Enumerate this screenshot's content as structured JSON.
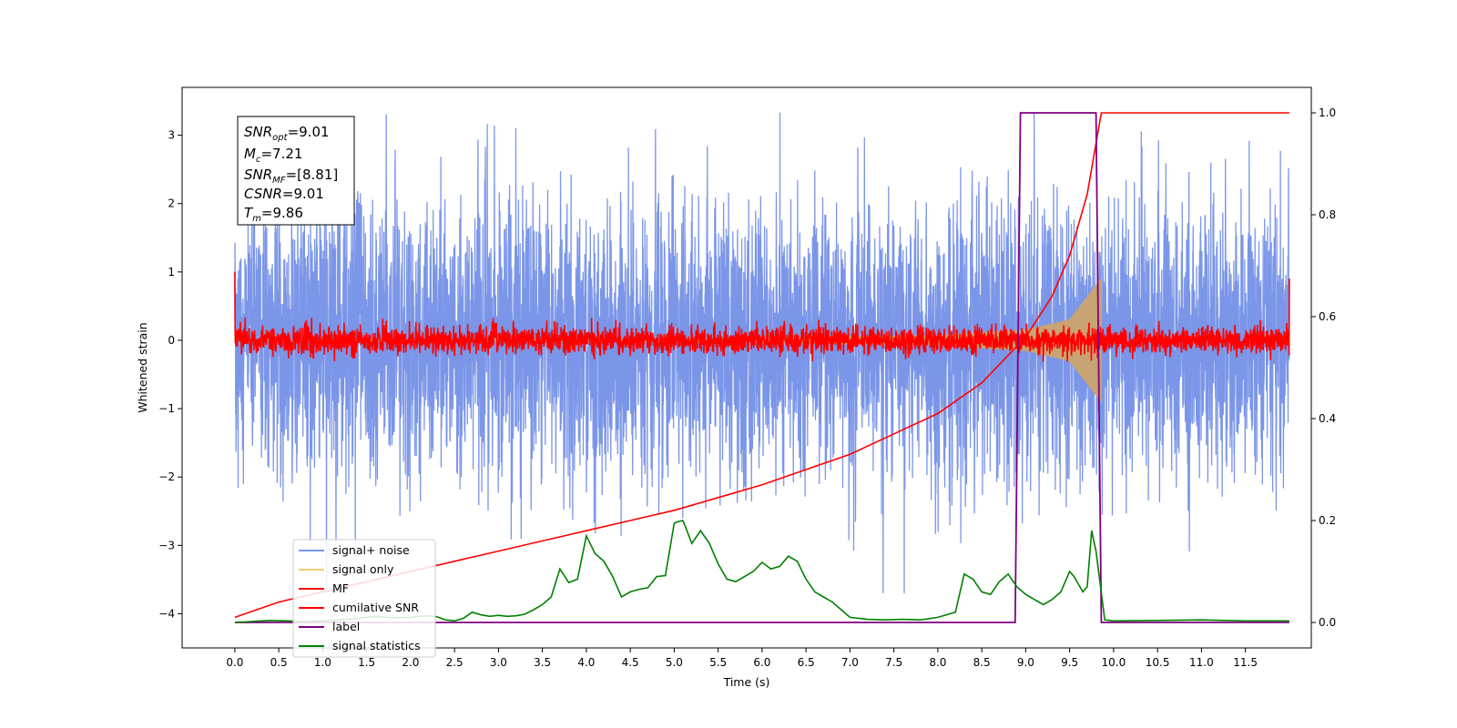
{
  "chart_data": {
    "type": "line",
    "xlabel": "Time (s)",
    "ylabel": "Whitened strain",
    "xlim": [
      -0.6,
      12.25
    ],
    "ylim_left": [
      -4.5,
      3.7
    ],
    "ylim_right": [
      -0.05,
      1.05
    ],
    "x_ticks": [
      "0.0",
      "0.5",
      "1.0",
      "1.5",
      "2.0",
      "2.5",
      "3.0",
      "3.5",
      "4.0",
      "4.5",
      "5.0",
      "5.5",
      "6.0",
      "6.5",
      "7.0",
      "7.5",
      "8.0",
      "8.5",
      "9.0",
      "9.5",
      "10.0",
      "10.5",
      "11.0",
      "11.5"
    ],
    "y_ticks_left": [
      "−4",
      "−3",
      "−2",
      "−1",
      "0",
      "1",
      "2",
      "3"
    ],
    "y_ticks_right": [
      "0.0",
      "0.2",
      "0.4",
      "0.6",
      "0.8",
      "1.0"
    ],
    "grid": false,
    "legend_position": "lower-left",
    "info_box": {
      "snr_opt": {
        "main": "SNR",
        "sub": "opt",
        "value": "=9.01"
      },
      "mc": {
        "main": "M",
        "sub": "c",
        "value": "=7.21"
      },
      "snr_mf": {
        "main": "SNR",
        "sub": "MF",
        "value": "=[8.81]"
      },
      "csnr": {
        "main": "CSNR",
        "sub": "",
        "value": "=9.01"
      },
      "tm": {
        "main": "T",
        "sub": "m",
        "value": "=9.86"
      }
    },
    "series": [
      {
        "name": "signal+ noise",
        "axis": "left",
        "color": "#7b96e8",
        "x_range": [
          0.0,
          12.0
        ],
        "envelope": {
          "mean": 0.0,
          "sigma": 1.0,
          "peak_max": 3.35,
          "peak_min": -3.7
        }
      },
      {
        "name": "signal only",
        "axis": "left",
        "color": "#f5c97a",
        "x_range": [
          0.0,
          9.86
        ],
        "chirp_amplitude": [
          [
            0.0,
            0.005
          ],
          [
            5.0,
            0.02
          ],
          [
            8.0,
            0.07
          ],
          [
            9.0,
            0.15
          ],
          [
            9.5,
            0.3
          ],
          [
            9.86,
            0.9
          ]
        ]
      },
      {
        "name": "MF",
        "axis": "left",
        "color": "#ff0000",
        "x_range": [
          0.0,
          12.0
        ],
        "noise": {
          "mean": 0.0,
          "sigma": 0.1,
          "peak": 0.33
        },
        "edges": [
          [
            0.0,
            1.0
          ],
          [
            12.0,
            0.9
          ]
        ]
      },
      {
        "name": "cumilative SNR",
        "axis": "right",
        "color": "#ff0000",
        "x": [
          0.0,
          0.5,
          1.0,
          1.5,
          2.0,
          2.5,
          3.0,
          3.5,
          4.0,
          4.5,
          5.0,
          5.5,
          6.0,
          6.5,
          7.0,
          7.5,
          8.0,
          8.5,
          9.0,
          9.3,
          9.5,
          9.7,
          9.86,
          10.0,
          11.0,
          12.0
        ],
        "y": [
          0.01,
          0.04,
          0.06,
          0.08,
          0.1,
          0.12,
          0.14,
          0.16,
          0.18,
          0.2,
          0.22,
          0.245,
          0.27,
          0.3,
          0.33,
          0.37,
          0.41,
          0.47,
          0.56,
          0.64,
          0.72,
          0.84,
          1.0,
          1.0,
          1.0,
          1.0
        ]
      },
      {
        "name": "label",
        "axis": "right",
        "color": "#800080",
        "x": [
          0.0,
          8.88,
          8.94,
          9.8,
          9.86,
          12.0
        ],
        "y": [
          0.0,
          0.0,
          1.0,
          1.0,
          0.0,
          0.0
        ]
      },
      {
        "name": "signal statistics",
        "axis": "right",
        "color": "#008000",
        "x": [
          0.0,
          0.2,
          0.4,
          0.6,
          0.8,
          1.0,
          1.2,
          1.4,
          1.6,
          1.8,
          2.0,
          2.1,
          2.2,
          2.3,
          2.4,
          2.5,
          2.6,
          2.7,
          2.8,
          2.9,
          3.0,
          3.1,
          3.2,
          3.3,
          3.4,
          3.5,
          3.6,
          3.7,
          3.8,
          3.9,
          4.0,
          4.1,
          4.2,
          4.3,
          4.4,
          4.5,
          4.6,
          4.7,
          4.8,
          4.9,
          5.0,
          5.05,
          5.1,
          5.2,
          5.3,
          5.4,
          5.5,
          5.6,
          5.7,
          5.8,
          5.9,
          6.0,
          6.1,
          6.2,
          6.3,
          6.4,
          6.5,
          6.6,
          6.7,
          6.8,
          6.9,
          7.0,
          7.2,
          7.4,
          7.6,
          7.8,
          8.0,
          8.2,
          8.3,
          8.4,
          8.5,
          8.6,
          8.7,
          8.8,
          8.9,
          9.0,
          9.1,
          9.2,
          9.3,
          9.4,
          9.5,
          9.55,
          9.6,
          9.65,
          9.7,
          9.75,
          9.8,
          9.9,
          10.0,
          10.5,
          11.0,
          11.5,
          12.0
        ],
        "y": [
          0.0,
          0.002,
          0.004,
          0.003,
          0.002,
          0.003,
          0.005,
          0.008,
          0.012,
          0.009,
          0.01,
          0.012,
          0.013,
          0.011,
          0.005,
          0.003,
          0.008,
          0.02,
          0.015,
          0.012,
          0.014,
          0.012,
          0.013,
          0.016,
          0.025,
          0.035,
          0.05,
          0.105,
          0.078,
          0.085,
          0.17,
          0.135,
          0.12,
          0.09,
          0.05,
          0.06,
          0.065,
          0.068,
          0.09,
          0.092,
          0.195,
          0.198,
          0.2,
          0.155,
          0.18,
          0.155,
          0.115,
          0.085,
          0.08,
          0.09,
          0.1,
          0.118,
          0.105,
          0.11,
          0.13,
          0.12,
          0.085,
          0.06,
          0.05,
          0.04,
          0.025,
          0.01,
          0.006,
          0.005,
          0.006,
          0.005,
          0.01,
          0.02,
          0.095,
          0.085,
          0.06,
          0.055,
          0.08,
          0.095,
          0.07,
          0.055,
          0.045,
          0.035,
          0.045,
          0.06,
          0.1,
          0.09,
          0.075,
          0.06,
          0.07,
          0.18,
          0.14,
          0.005,
          0.003,
          0.004,
          0.005,
          0.003,
          0.003
        ]
      }
    ]
  }
}
